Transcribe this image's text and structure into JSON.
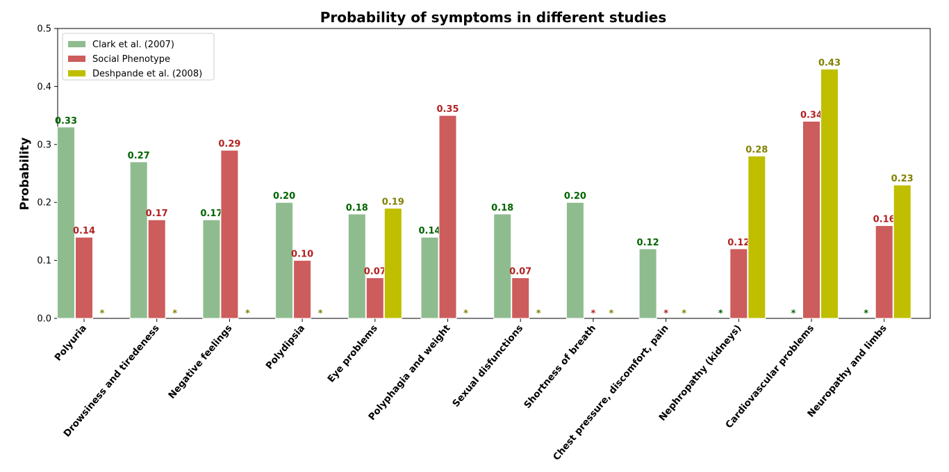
{
  "chart_data": {
    "type": "bar",
    "title": "Probability of symptoms in different studies",
    "xlabel": "",
    "ylabel": "Probability",
    "ylim": [
      0,
      0.5
    ],
    "yticks": [
      "0.0",
      "0.1",
      "0.2",
      "0.3",
      "0.4",
      "0.5"
    ],
    "grid": false,
    "legend_position": "top-left",
    "categories": [
      "Polyuria",
      "Drowsiness and tiredeness",
      "Negative feelings",
      "Polydipsia",
      "Eye problems",
      "Polyphagia and weight",
      "Sexual disfunctions",
      "Shortness of breath",
      "Chest pressure, discomfort, pain",
      "Nephropathy (kidneys)",
      "Cardiovascular problems",
      "Neuropathy and limbs"
    ],
    "series": [
      {
        "name": "Clark et al. (2007)",
        "color": "#8fbc8f",
        "label_color": "#006400",
        "values": [
          0.33,
          0.27,
          0.17,
          0.2,
          0.18,
          0.14,
          0.18,
          0.2,
          0.12,
          null,
          null,
          null
        ],
        "labels": [
          "0.33",
          "0.27",
          "0.17",
          "0.20",
          "0.18",
          "0.14",
          "0.18",
          "0.20",
          "0.12",
          "*",
          "*",
          "*"
        ]
      },
      {
        "name": "Social Phenotype",
        "color": "#cd5c5c",
        "label_color": "#b22222",
        "values": [
          0.14,
          0.17,
          0.29,
          0.1,
          0.07,
          0.35,
          0.07,
          null,
          null,
          0.12,
          0.34,
          0.16
        ],
        "labels": [
          "0.14",
          "0.17",
          "0.29",
          "0.10",
          "0.07",
          "0.35",
          "0.07",
          "*",
          "*",
          "0.12",
          "0.34",
          "0.16"
        ]
      },
      {
        "name": "Deshpande et al. (2008)",
        "color": "#bfbf00",
        "label_color": "#808000",
        "values": [
          null,
          null,
          null,
          null,
          0.19,
          null,
          null,
          null,
          null,
          0.28,
          0.43,
          0.23
        ],
        "labels": [
          "*",
          "*",
          "*",
          "*",
          "0.19",
          "*",
          "*",
          "*",
          "*",
          "0.28",
          "0.43",
          "0.23"
        ]
      }
    ]
  }
}
